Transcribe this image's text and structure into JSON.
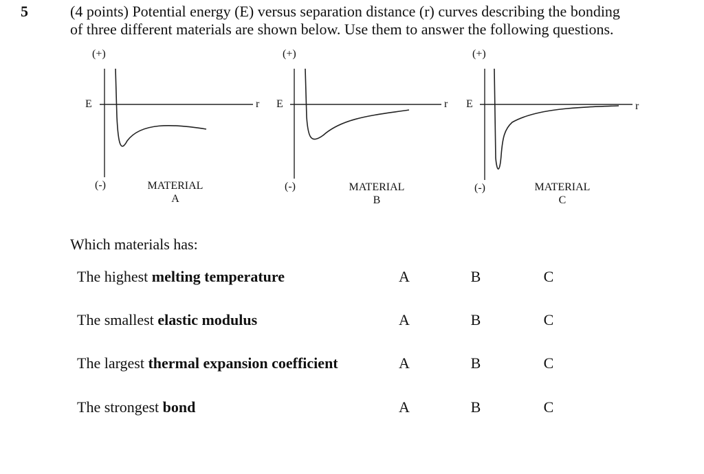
{
  "question": {
    "number": "5",
    "prompt_line1": "(4 points) Potential energy (E) versus separation distance (r) curves describing the bonding",
    "prompt_line2": "of three different materials are shown below.  Use them to answer the following questions."
  },
  "graphs": [
    {
      "plus": "(+)",
      "minus": "(-)",
      "y_label": "E",
      "x_label": "r",
      "material_line1": "MATERIAL",
      "material_line2": "A"
    },
    {
      "plus": "(+)",
      "minus": "(-)",
      "y_label": "E",
      "x_label": "r",
      "material_line1": "MATERIAL",
      "material_line2": "B"
    },
    {
      "plus": "(+)",
      "minus": "(-)",
      "y_label": "E",
      "x_label": "r",
      "material_line1": "MATERIAL",
      "material_line2": "C"
    }
  ],
  "which_heading": "Which materials has:",
  "rows": [
    {
      "prefix": "The highest ",
      "bold": "melting temperature",
      "options": [
        "A",
        "B",
        "C"
      ]
    },
    {
      "prefix": "The smallest ",
      "bold": "elastic modulus",
      "options": [
        "A",
        "B",
        "C"
      ]
    },
    {
      "prefix": "The largest ",
      "bold": "thermal expansion coefficient",
      "options": [
        "A",
        "B",
        "C"
      ]
    },
    {
      "prefix": "The strongest ",
      "bold": "bond",
      "options": [
        "A",
        "B",
        "C"
      ]
    }
  ]
}
